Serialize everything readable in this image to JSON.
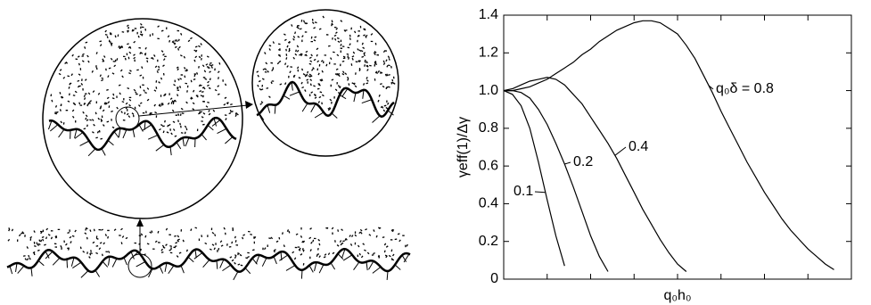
{
  "chart_data": {
    "type": "line",
    "y_label": "γeff(1)/Δγ",
    "x_label": "q₀h₀",
    "categories": [
      null,
      null,
      null,
      null,
      null,
      null,
      null,
      null,
      null,
      null,
      null,
      null,
      null,
      null,
      null,
      null,
      null,
      null,
      null,
      null,
      null,
      null,
      null,
      null,
      null,
      null,
      null,
      null,
      null,
      null,
      null,
      null,
      null,
      null,
      null,
      null,
      null,
      null,
      null,
      null,
      null
    ],
    "ylim": [
      0,
      1.4
    ],
    "yticks": [
      0,
      0.2,
      0.4,
      0.6,
      0.8,
      {
        "value": 1,
        "label": "1.0"
      },
      1.2,
      1.4
    ],
    "series": [
      {
        "name": "q₀δ = 0.8",
        "color": "#000000",
        "values": [
          1.0,
          1.0,
          1.01,
          1.02,
          1.04,
          1.06,
          1.09,
          1.12,
          1.15,
          1.19,
          1.22,
          1.26,
          1.29,
          1.32,
          1.34,
          1.36,
          1.37,
          1.37,
          1.36,
          1.33,
          1.3,
          1.24,
          1.17,
          1.08,
          0.99,
          0.89,
          0.8,
          0.71,
          0.62,
          0.54,
          0.46,
          0.39,
          0.32,
          0.26,
          0.21,
          0.16,
          0.12,
          0.08,
          0.05,
          null,
          null
        ]
      },
      {
        "name": "0.4",
        "color": "#000000",
        "values": [
          1.0,
          1.01,
          1.03,
          1.05,
          1.06,
          1.07,
          1.06,
          1.03,
          0.98,
          0.93,
          0.86,
          0.79,
          0.72,
          0.64,
          0.55,
          0.46,
          0.37,
          0.29,
          0.21,
          0.14,
          0.08,
          0.04,
          null,
          null,
          null,
          null,
          null,
          null,
          null,
          null,
          null,
          null,
          null,
          null,
          null,
          null,
          null,
          null,
          null,
          null,
          null
        ]
      },
      {
        "name": "0.2",
        "color": "#000000",
        "values": [
          1.0,
          1.0,
          0.99,
          0.96,
          0.9,
          0.82,
          0.72,
          0.61,
          0.49,
          0.36,
          0.23,
          0.12,
          0.04,
          null,
          null,
          null,
          null,
          null,
          null,
          null,
          null,
          null,
          null,
          null,
          null,
          null,
          null,
          null,
          null,
          null,
          null,
          null,
          null,
          null,
          null,
          null,
          null,
          null,
          null,
          null,
          null
        ]
      },
      {
        "name": "0.1",
        "color": "#000000",
        "values": [
          1.0,
          0.98,
          0.92,
          0.8,
          0.62,
          0.42,
          0.23,
          0.07,
          null,
          null,
          null,
          null,
          null,
          null,
          null,
          null,
          null,
          null,
          null,
          null,
          null,
          null,
          null,
          null,
          null,
          null,
          null,
          null,
          null,
          null,
          null,
          null,
          null,
          null,
          null,
          null,
          null,
          null,
          null,
          null,
          null
        ]
      }
    ]
  }
}
